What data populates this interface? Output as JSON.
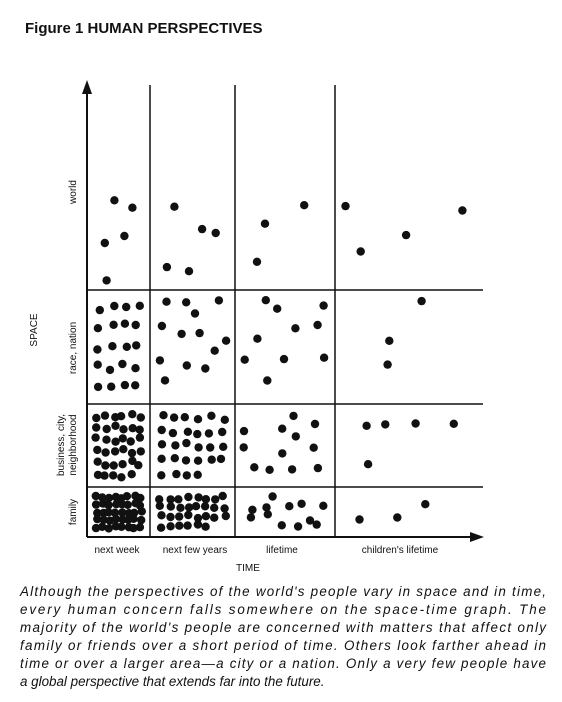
{
  "header": {
    "title": "Figure 1 HUMAN PERSPECTIVES"
  },
  "axes": {
    "y_label": "SPACE",
    "x_label": "TIME"
  },
  "rows": [
    {
      "label": "world"
    },
    {
      "label": "race, nation"
    },
    {
      "label": "business, city,",
      "label2": "neighborhood"
    },
    {
      "label": "family"
    }
  ],
  "columns": [
    {
      "label": "next week"
    },
    {
      "label": "next few years"
    },
    {
      "label": "lifetime"
    },
    {
      "label": "children's lifetime"
    }
  ],
  "caption": {
    "lines": [
      "Although the perspectives of the world's people vary in space and in time,",
      "every human concern falls somewhere on the space-time graph. The",
      "majority of the world's people are concerned with matters that affect only",
      "family or friends over a short period of time. Others look farther ahead in",
      "time or over a larger area—a city or a nation. Only a very few people have",
      "a global perspective that extends far into the future."
    ]
  }
}
